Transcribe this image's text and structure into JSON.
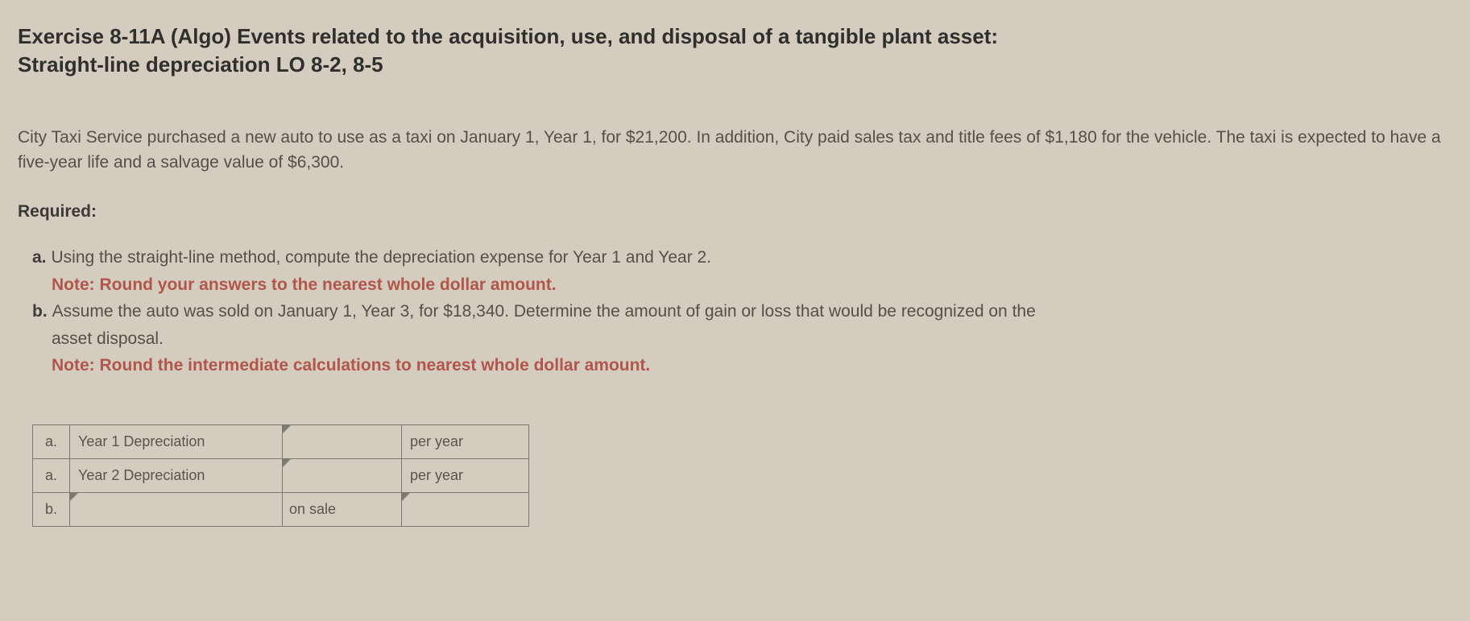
{
  "title_line1": "Exercise 8-11A (Algo) Events related to the acquisition, use, and disposal of a tangible plant asset:",
  "title_line2": "Straight-line depreciation LO 8-2, 8-5",
  "body": "City Taxi Service purchased a new auto to use as a taxi on January 1, Year 1, for $21,200. In addition, City paid sales tax and title fees of $1,180 for the vehicle. The taxi is expected to have a five-year life and a salvage value of $6,300.",
  "required_label": "Required:",
  "req_a_letter": "a.",
  "req_a_text": "Using the straight-line method, compute the depreciation expense for Year 1 and Year 2.",
  "req_a_note": "Note: Round your answers to the nearest whole dollar amount.",
  "req_b_letter": "b.",
  "req_b_text": "Assume the auto was sold on January 1, Year 3, for $18,340. Determine the amount of gain or loss that would be recognized on the",
  "req_b_text2": "asset disposal.",
  "req_b_note": "Note: Round the intermediate calculations to nearest whole dollar amount.",
  "table": {
    "r1": {
      "letter": "a.",
      "label": "Year 1 Depreciation",
      "value": "",
      "unit": "per year"
    },
    "r2": {
      "letter": "a.",
      "label": "Year 2 Depreciation",
      "value": "",
      "unit": "per year"
    },
    "r3": {
      "letter": "b.",
      "label": "",
      "mid": "on sale",
      "value": ""
    }
  }
}
